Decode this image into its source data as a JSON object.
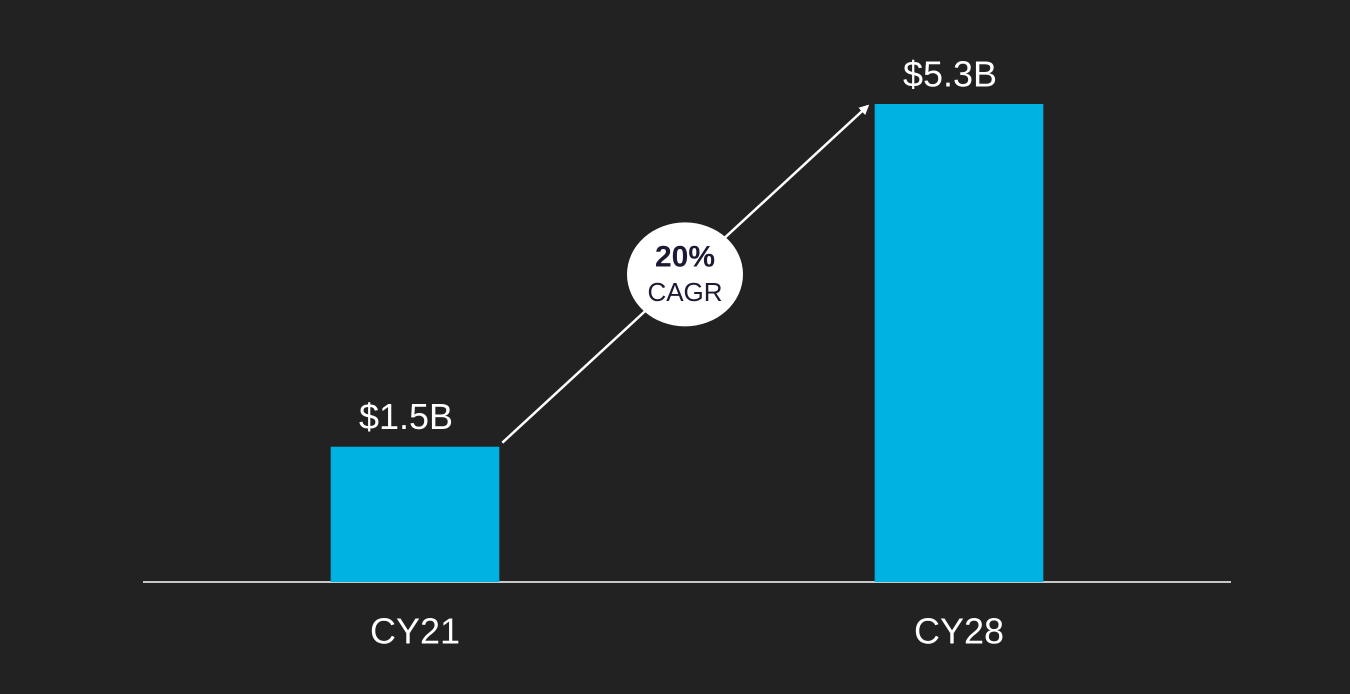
{
  "chart_data": {
    "type": "bar",
    "categories": [
      "CY21",
      "CY28"
    ],
    "values": [
      1.5,
      5.3
    ],
    "value_labels": [
      "$1.5B",
      "$5.3B"
    ],
    "color": "#00b2e2",
    "annotation": {
      "text": "20%",
      "label": "CAGR"
    }
  }
}
